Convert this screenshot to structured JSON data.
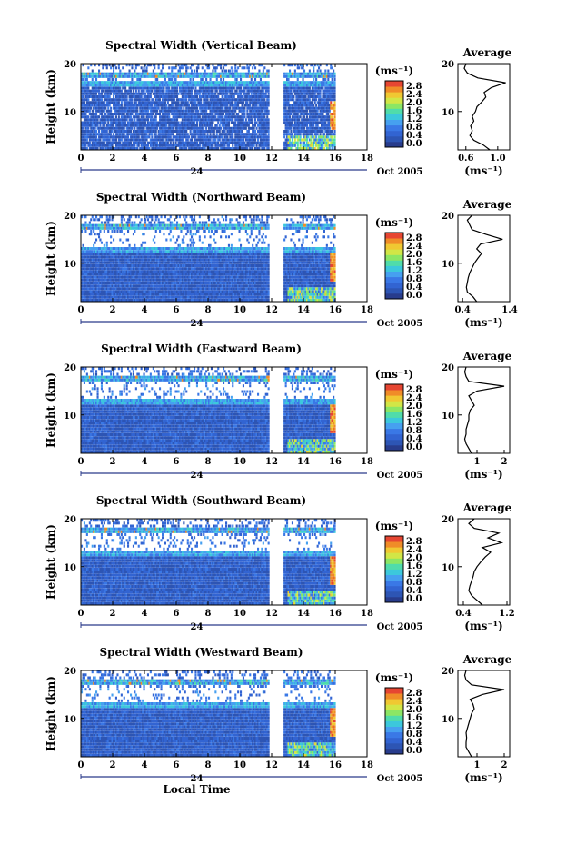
{
  "chart_data": [
    {
      "type": "heatmap",
      "title": "Spectral Width (Vertical Beam)",
      "xlabel": "",
      "ylabel": "Height (km)",
      "xlim": [
        0,
        18
      ],
      "ylim": [
        2,
        20
      ],
      "x_ticks": [
        "0",
        "2",
        "4",
        "6",
        "8",
        "10",
        "12",
        "14",
        "16",
        "18"
      ],
      "y_ticks": [
        "20",
        "10"
      ],
      "date_tick": "24",
      "date_label": "Oct 2005",
      "colorbar": {
        "unit": "(ms⁻¹)",
        "ticks": [
          "2.8",
          "2.4",
          "2.0",
          "1.6",
          "1.2",
          "0.8",
          "0.4",
          "0.0"
        ]
      },
      "profile": {
        "title": "Average",
        "xlabel": "(ms⁻¹)",
        "x_ticks": [
          "0.6",
          "1.0"
        ],
        "xlim": [
          0.5,
          1.15
        ],
        "y_ticks": [
          "20",
          "10"
        ],
        "points": [
          [
            0.9,
            2
          ],
          [
            0.82,
            3
          ],
          [
            0.7,
            4
          ],
          [
            0.65,
            5
          ],
          [
            0.68,
            6
          ],
          [
            0.66,
            7
          ],
          [
            0.7,
            8
          ],
          [
            0.68,
            9
          ],
          [
            0.72,
            10
          ],
          [
            0.74,
            11
          ],
          [
            0.8,
            12
          ],
          [
            0.85,
            13
          ],
          [
            0.83,
            14
          ],
          [
            0.92,
            15
          ],
          [
            1.1,
            16
          ],
          [
            0.75,
            17
          ],
          [
            0.62,
            18
          ],
          [
            0.58,
            19
          ],
          [
            0.6,
            20
          ]
        ]
      }
    },
    {
      "type": "heatmap",
      "title": "Spectral Width (Northward Beam)",
      "xlabel": "",
      "ylabel": "Height (km)",
      "xlim": [
        0,
        18
      ],
      "ylim": [
        2,
        20
      ],
      "x_ticks": [
        "0",
        "2",
        "4",
        "6",
        "8",
        "10",
        "12",
        "14",
        "16",
        "18"
      ],
      "y_ticks": [
        "20",
        "10"
      ],
      "date_tick": "24",
      "date_label": "Oct 2005",
      "colorbar": {
        "unit": "(ms⁻¹)",
        "ticks": [
          "2.8",
          "2.4",
          "2.0",
          "1.6",
          "1.2",
          "0.8",
          "0.4",
          "0.0"
        ]
      },
      "profile": {
        "title": "Average",
        "xlabel": "(ms⁻¹)",
        "x_ticks": [
          "0.4",
          "1.4"
        ],
        "xlim": [
          0.3,
          1.4
        ],
        "y_ticks": [
          "20",
          "10"
        ],
        "points": [
          [
            0.7,
            2
          ],
          [
            0.62,
            3
          ],
          [
            0.5,
            4
          ],
          [
            0.48,
            5
          ],
          [
            0.5,
            6
          ],
          [
            0.52,
            7
          ],
          [
            0.55,
            8
          ],
          [
            0.6,
            9
          ],
          [
            0.65,
            10
          ],
          [
            0.72,
            11
          ],
          [
            0.8,
            12
          ],
          [
            0.7,
            13
          ],
          [
            0.78,
            14
          ],
          [
            1.25,
            15
          ],
          [
            0.9,
            16
          ],
          [
            0.6,
            17
          ],
          [
            0.55,
            18
          ],
          [
            0.5,
            19
          ],
          [
            0.6,
            20
          ]
        ]
      }
    },
    {
      "type": "heatmap",
      "title": "Spectral Width (Eastward Beam)",
      "xlabel": "",
      "ylabel": "Height (km)",
      "xlim": [
        0,
        18
      ],
      "ylim": [
        2,
        20
      ],
      "x_ticks": [
        "0",
        "2",
        "4",
        "6",
        "8",
        "10",
        "12",
        "14",
        "16",
        "18"
      ],
      "y_ticks": [
        "20",
        "10"
      ],
      "date_tick": "24",
      "date_label": "Oct 2005",
      "colorbar": {
        "unit": "(ms⁻¹)",
        "ticks": [
          "2.8",
          "2.4",
          "2.0",
          "1.6",
          "1.2",
          "0.8",
          "0.4",
          "0.0"
        ]
      },
      "profile": {
        "title": "Average",
        "xlabel": "(ms⁻¹)",
        "x_ticks": [
          "1",
          "2"
        ],
        "xlim": [
          0.3,
          2.2
        ],
        "y_ticks": [
          "20",
          "10"
        ],
        "points": [
          [
            0.8,
            2
          ],
          [
            0.7,
            3
          ],
          [
            0.6,
            4
          ],
          [
            0.55,
            5
          ],
          [
            0.6,
            6
          ],
          [
            0.6,
            7
          ],
          [
            0.65,
            8
          ],
          [
            0.7,
            9
          ],
          [
            0.7,
            10
          ],
          [
            0.75,
            11
          ],
          [
            0.9,
            12
          ],
          [
            0.8,
            13
          ],
          [
            0.7,
            14
          ],
          [
            1.0,
            15
          ],
          [
            2.0,
            16
          ],
          [
            0.7,
            17
          ],
          [
            0.6,
            18
          ],
          [
            0.55,
            19
          ],
          [
            0.6,
            20
          ]
        ]
      }
    },
    {
      "type": "heatmap",
      "title": "Spectral Width (Southward Beam)",
      "xlabel": "",
      "ylabel": "Height (km)",
      "xlim": [
        0,
        18
      ],
      "ylim": [
        2,
        20
      ],
      "x_ticks": [
        "0",
        "2",
        "4",
        "6",
        "8",
        "10",
        "12",
        "14",
        "16",
        "18"
      ],
      "y_ticks": [
        "20",
        "10"
      ],
      "date_tick": "24",
      "date_label": "Oct 2005",
      "colorbar": {
        "unit": "(ms⁻¹)",
        "ticks": [
          "2.8",
          "2.4",
          "2.0",
          "1.6",
          "1.2",
          "0.8",
          "0.4",
          "0.0"
        ]
      },
      "profile": {
        "title": "Average",
        "xlabel": "(ms⁻¹)",
        "x_ticks": [
          "0.4",
          "1.2"
        ],
        "xlim": [
          0.3,
          1.25
        ],
        "y_ticks": [
          "20",
          "10"
        ],
        "points": [
          [
            0.75,
            2
          ],
          [
            0.65,
            3
          ],
          [
            0.55,
            4
          ],
          [
            0.5,
            5
          ],
          [
            0.52,
            6
          ],
          [
            0.55,
            7
          ],
          [
            0.58,
            8
          ],
          [
            0.6,
            9
          ],
          [
            0.65,
            10
          ],
          [
            0.72,
            11
          ],
          [
            0.8,
            12
          ],
          [
            0.9,
            13
          ],
          [
            0.75,
            14
          ],
          [
            1.1,
            15
          ],
          [
            0.85,
            16
          ],
          [
            1.05,
            17
          ],
          [
            0.6,
            18
          ],
          [
            0.5,
            19
          ],
          [
            0.6,
            20
          ]
        ]
      }
    },
    {
      "type": "heatmap",
      "title": "Spectral Width (Westward Beam)",
      "xlabel": "Local Time",
      "ylabel": "Height (km)",
      "xlim": [
        0,
        18
      ],
      "ylim": [
        2,
        20
      ],
      "x_ticks": [
        "0",
        "2",
        "4",
        "6",
        "8",
        "10",
        "12",
        "14",
        "16",
        "18"
      ],
      "y_ticks": [
        "20",
        "10"
      ],
      "date_tick": "24",
      "date_label": "Oct 2005",
      "colorbar": {
        "unit": "(ms⁻¹)",
        "ticks": [
          "2.8",
          "2.4",
          "2.0",
          "1.6",
          "1.2",
          "0.8",
          "0.4",
          "0.0"
        ]
      },
      "profile": {
        "title": "Average",
        "xlabel": "(ms⁻¹)",
        "x_ticks": [
          "1",
          "2"
        ],
        "xlim": [
          0.3,
          2.2
        ],
        "y_ticks": [
          "20",
          "10"
        ],
        "points": [
          [
            0.8,
            2
          ],
          [
            0.7,
            3
          ],
          [
            0.6,
            4
          ],
          [
            0.6,
            5
          ],
          [
            0.62,
            6
          ],
          [
            0.6,
            7
          ],
          [
            0.65,
            8
          ],
          [
            0.7,
            9
          ],
          [
            0.75,
            10
          ],
          [
            0.8,
            11
          ],
          [
            0.9,
            12
          ],
          [
            0.85,
            13
          ],
          [
            0.75,
            14
          ],
          [
            1.2,
            15
          ],
          [
            2.0,
            16
          ],
          [
            0.8,
            17
          ],
          [
            0.6,
            18
          ],
          [
            0.55,
            19
          ],
          [
            0.6,
            20
          ]
        ]
      }
    }
  ]
}
